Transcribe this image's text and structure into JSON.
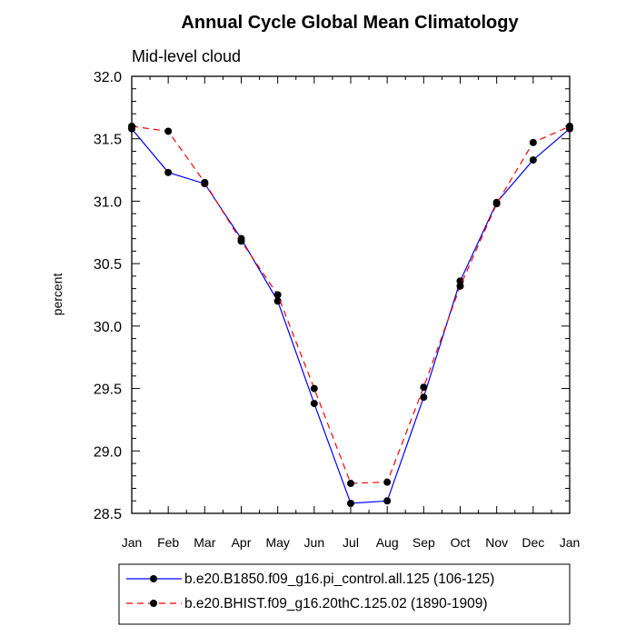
{
  "chart_data": {
    "type": "line",
    "title": "Annual Cycle Global Mean Climatology",
    "subtitle": "Mid-level cloud",
    "xlabel": "",
    "ylabel": "percent",
    "categories": [
      "Jan",
      "Feb",
      "Mar",
      "Apr",
      "May",
      "Jun",
      "Jul",
      "Aug",
      "Sep",
      "Oct",
      "Nov",
      "Dec",
      "Jan"
    ],
    "ylim": [
      28.5,
      32.0
    ],
    "yticks": [
      "28.5",
      "29.0",
      "29.5",
      "30.0",
      "30.5",
      "31.0",
      "31.5",
      "32.0"
    ],
    "series": [
      {
        "name": "b.e20.B1850.f09_g16.pi_control.all.125 (106-125)",
        "color": "#0000ff",
        "dash": "solid",
        "values": [
          31.58,
          31.23,
          31.14,
          30.7,
          30.2,
          29.38,
          28.58,
          28.6,
          29.43,
          30.36,
          30.99,
          31.33,
          31.58
        ]
      },
      {
        "name": "b.e20.BHIST.f09_g16.20thC.125.02 (1890-1909)",
        "color": "#ff0000",
        "dash": "dashed",
        "values": [
          31.6,
          31.56,
          31.15,
          30.68,
          30.25,
          29.5,
          28.74,
          28.75,
          29.51,
          30.32,
          30.98,
          31.47,
          31.6
        ]
      }
    ],
    "legend_position": "bottom",
    "grid": false
  }
}
